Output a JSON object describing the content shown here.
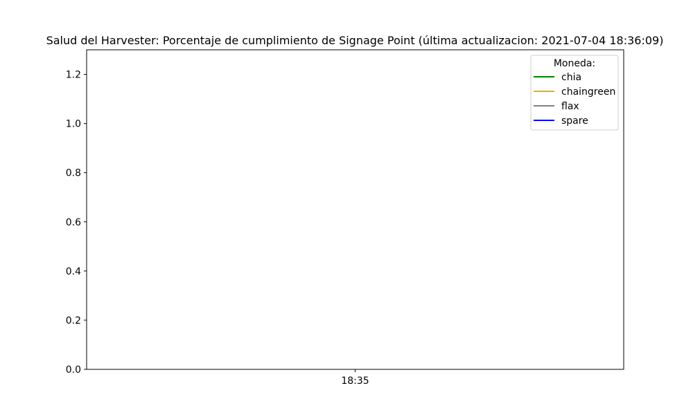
{
  "chart_data": {
    "type": "line",
    "title": "Salud del Harvester: Porcentaje de cumplimiento de Signage Point (última actualizacion: 2021-07-04 18:36:09)",
    "xlabel": "",
    "ylabel": "",
    "x_ticks": [
      "18:35"
    ],
    "y_ticks": [
      "0.0",
      "0.2",
      "0.4",
      "0.6",
      "0.8",
      "1.0",
      "1.2"
    ],
    "y_tick_values": [
      0.0,
      0.2,
      0.4,
      0.6,
      0.8,
      1.0,
      1.2
    ],
    "ylim": [
      0,
      1.3
    ],
    "grid": false,
    "legend": {
      "title": "Moneda:",
      "placement": "top-right"
    },
    "series": [
      {
        "name": "chia",
        "color": "#008000",
        "values": []
      },
      {
        "name": "chaingreen",
        "color": "#ffa500",
        "values": []
      },
      {
        "name": "flax",
        "color": "#808080",
        "values": []
      },
      {
        "name": "spare",
        "color": "#0000ff",
        "values": []
      }
    ]
  }
}
